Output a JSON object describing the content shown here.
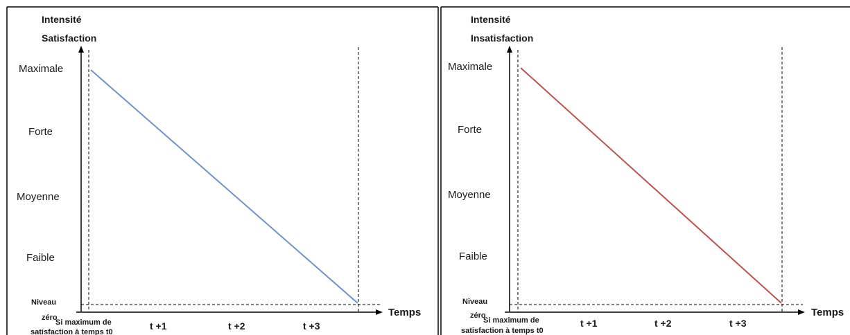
{
  "chart_data": [
    {
      "type": "line",
      "ylabel": "Intensité",
      "subtitle": "Satisfaction",
      "xlabel": "Temps",
      "y_levels": [
        "Niveau zéro",
        "Faible",
        "Moyenne",
        "Forte",
        "Maximale"
      ],
      "y_levels_display": {
        "Niveau": "Niveau",
        "zero": "zéro",
        "faible": "Faible",
        "moyenne": "Moyenne",
        "forte": "Forte",
        "maximale": "Maximale"
      },
      "x_tick_t0": {
        "line1": "Si maximum de",
        "line2": "satisfaction à temps t0"
      },
      "x_ticks": [
        "t +1",
        "t +2",
        "t +3"
      ],
      "series": [
        {
          "values_x": [
            0,
            4
          ],
          "values_y": [
            4,
            0
          ]
        }
      ],
      "ylim": [
        0,
        4
      ],
      "xlim": [
        0,
        4
      ],
      "line_color": "#6a93cf",
      "subtitle_color": "#4a72b0"
    },
    {
      "type": "line",
      "ylabel": "Intensité",
      "subtitle": "Insatisfaction",
      "xlabel": "Temps",
      "y_levels": [
        "Niveau zéro",
        "Faible",
        "Moyenne",
        "Forte",
        "Maximale"
      ],
      "y_levels_display": {
        "Niveau": "Niveau",
        "zero": "zéro",
        "faible": "Faible",
        "moyenne": "Moyenne",
        "forte": "Forte",
        "maximale": "Maximale"
      },
      "x_tick_t0": {
        "line1": "Si maximum de",
        "line2": "satisfaction à temps t0"
      },
      "x_ticks": [
        "t +1",
        "t +2",
        "t +3"
      ],
      "series": [
        {
          "values_x": [
            0,
            4
          ],
          "values_y": [
            4,
            0
          ]
        }
      ],
      "ylim": [
        0,
        4
      ],
      "xlim": [
        0,
        4
      ],
      "line_color": "#c0504d",
      "subtitle_color": "#e02020"
    }
  ]
}
